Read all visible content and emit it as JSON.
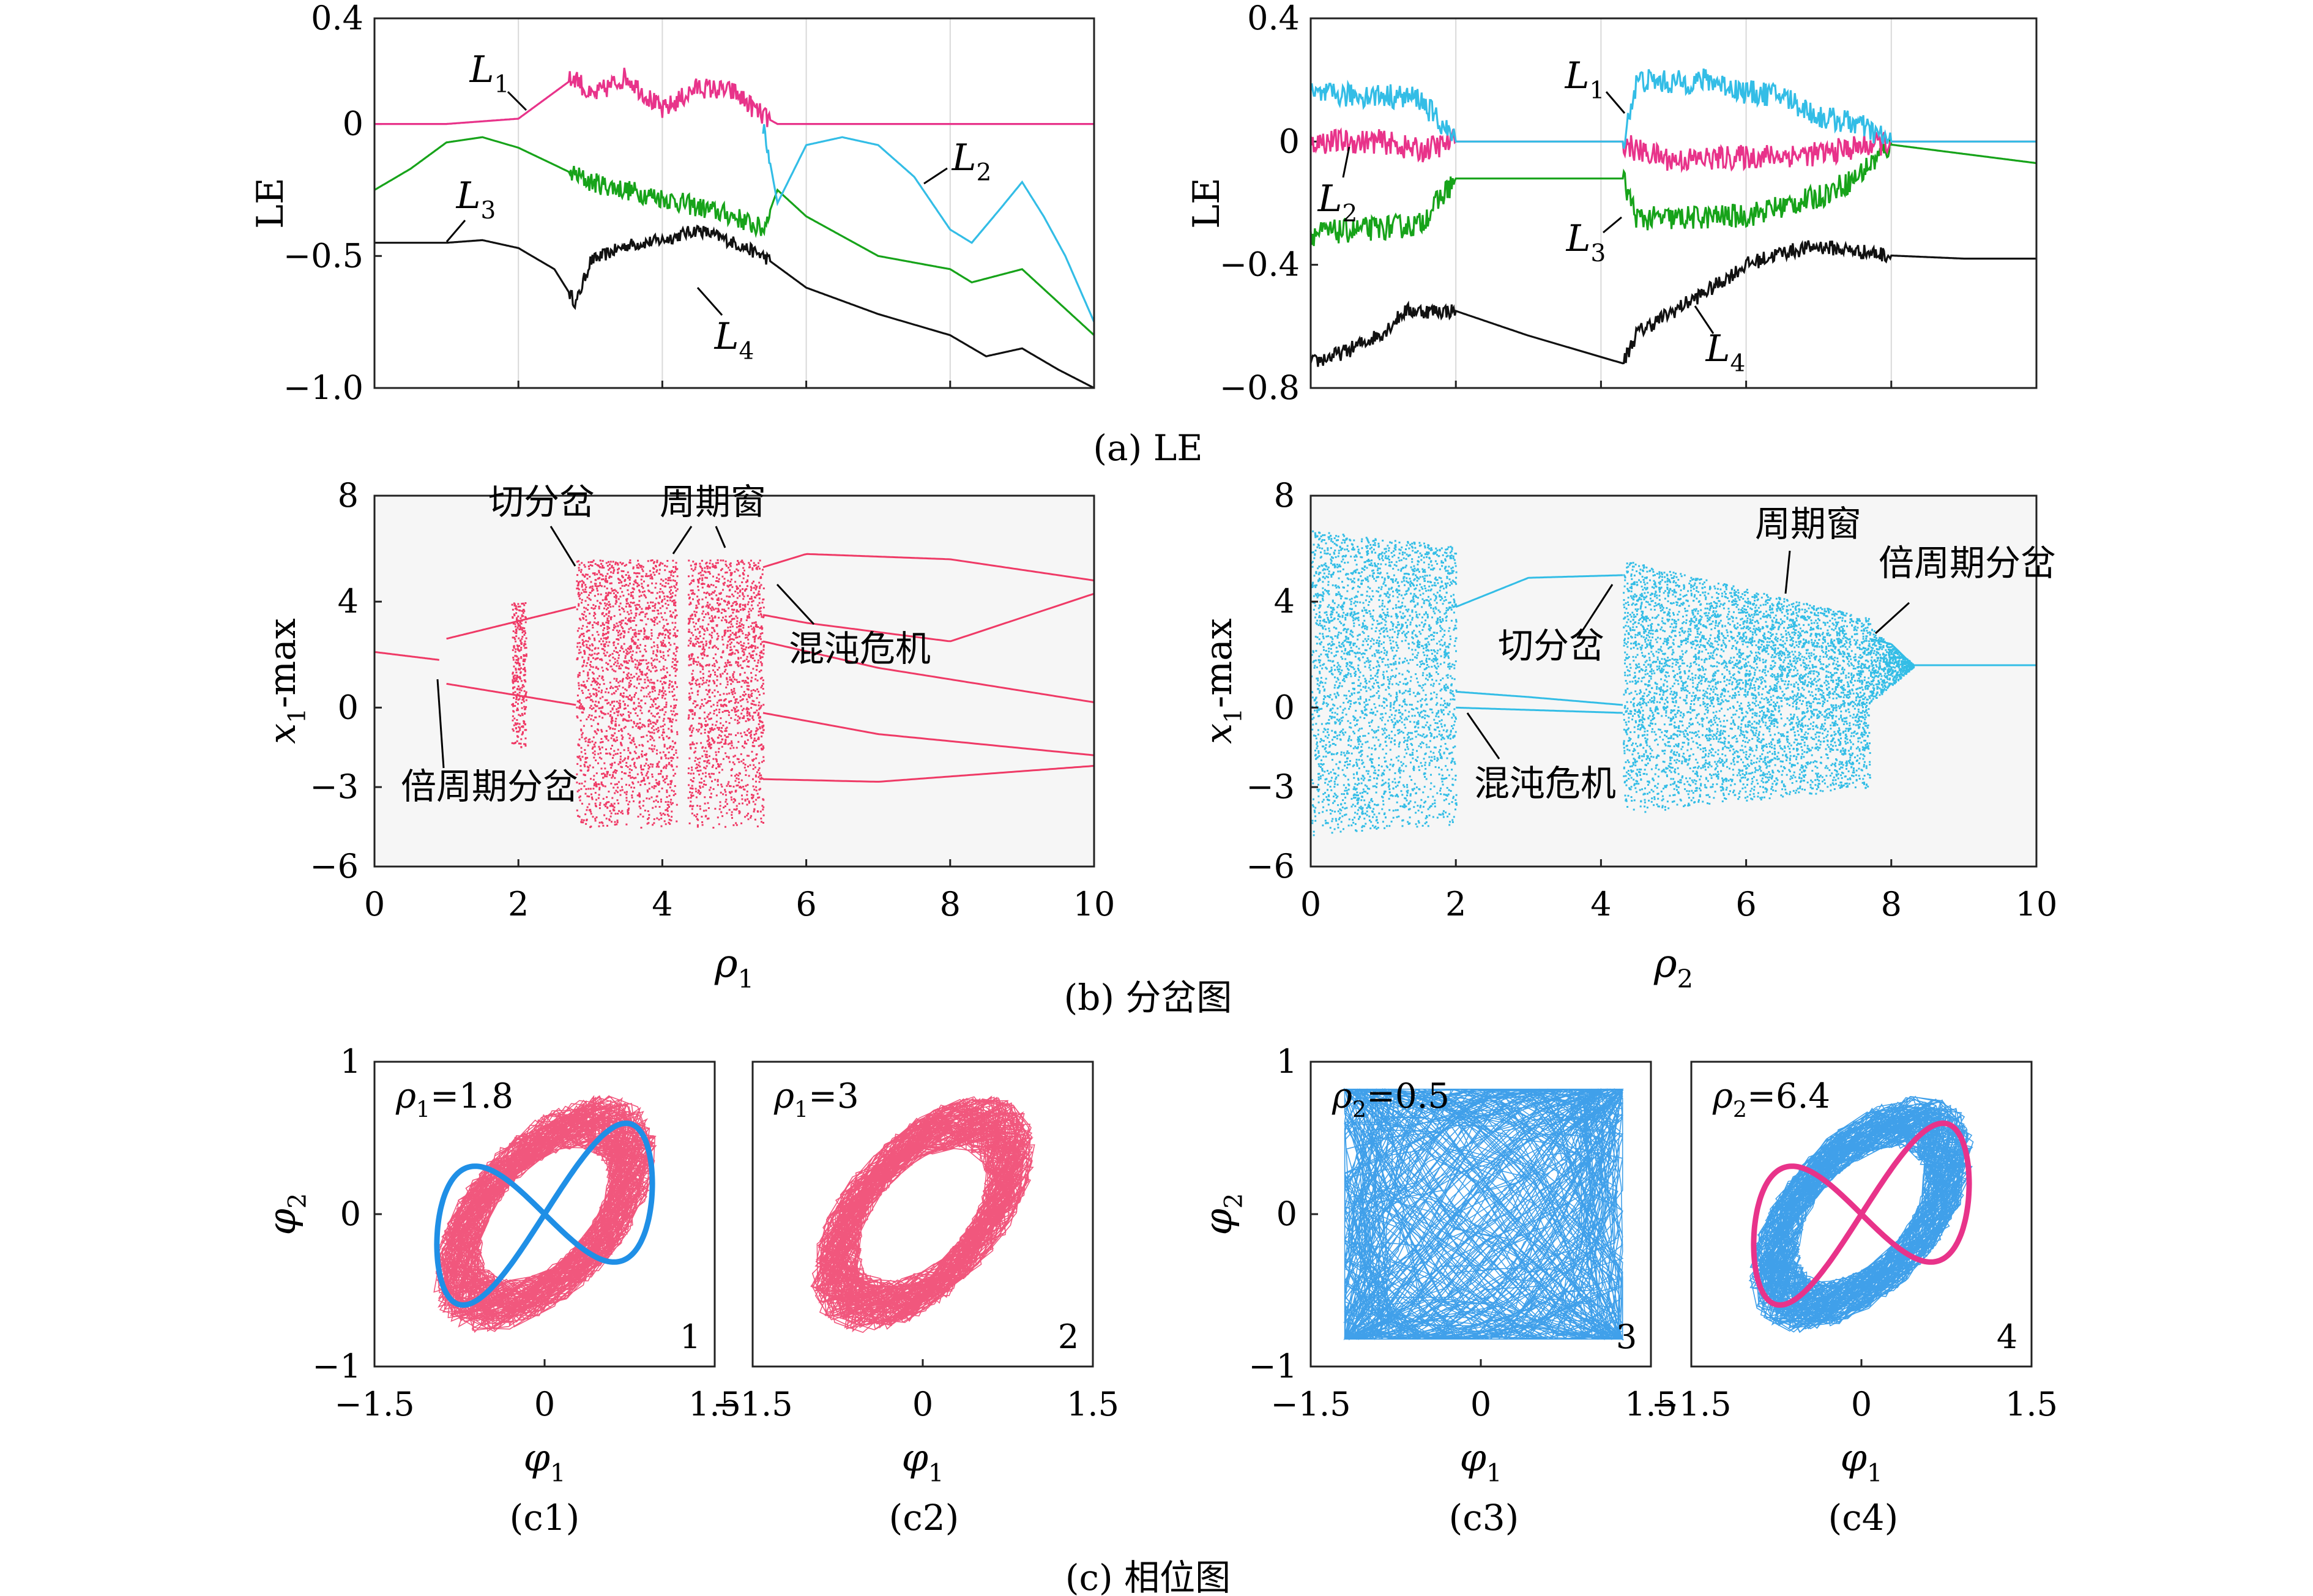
{
  "colors": {
    "pink": "#e8338a",
    "red": "#ef3a66",
    "cyan": "#33bde6",
    "blue": "#1f8fe6",
    "green": "#17a31a",
    "black": "#111111",
    "panel_bg": "#f6f6f6"
  },
  "captions": {
    "a": "(a) LE",
    "b": "(b) 分岔图",
    "c": "(c) 相位图",
    "c1": "(c1)",
    "c2": "(c2)",
    "c3": "(c3)",
    "c4": "(c4)"
  },
  "chart_data": [
    {
      "id": "a-left",
      "type": "line",
      "ylabel": "LE",
      "xlim": [
        0,
        10
      ],
      "ylim": [
        -1.0,
        0.4
      ],
      "yticks": [
        "0.4",
        "0",
        "−0.5",
        "−1.0"
      ],
      "ytick_values": [
        0.4,
        0,
        -0.5,
        -1.0
      ],
      "series_labels": [
        "L1",
        "L2",
        "L3",
        "L4"
      ],
      "series": [
        {
          "name": "L1",
          "color": "pink",
          "x": [
            0,
            1,
            2,
            2.8,
            3,
            3.5,
            4,
            4.5,
            5,
            5.4,
            5.6,
            10
          ],
          "y": [
            0,
            0,
            0.02,
            0.18,
            0.1,
            0.18,
            0.05,
            0.14,
            0.12,
            0.03,
            0,
            0
          ]
        },
        {
          "name": "L2",
          "color": "cyan",
          "x": [
            5.4,
            5.6,
            6,
            6.5,
            7,
            7.5,
            8,
            8.3,
            8.7,
            9,
            9.3,
            9.6,
            10
          ],
          "y": [
            0,
            -0.3,
            -0.08,
            -0.05,
            -0.08,
            -0.2,
            -0.4,
            -0.45,
            -0.32,
            -0.22,
            -0.35,
            -0.5,
            -0.75
          ]
        },
        {
          "name": "L3",
          "color": "green",
          "x": [
            0,
            0.5,
            1,
            1.5,
            2,
            3,
            4,
            5,
            5.4,
            5.6,
            6,
            7,
            8,
            8.3,
            9,
            10
          ],
          "y": [
            -0.25,
            -0.17,
            -0.07,
            -0.05,
            -0.09,
            -0.22,
            -0.28,
            -0.35,
            -0.4,
            -0.25,
            -0.35,
            -0.5,
            -0.55,
            -0.6,
            -0.55,
            -0.8
          ]
        },
        {
          "name": "L4",
          "color": "black",
          "x": [
            0,
            1,
            1.5,
            2,
            2.5,
            2.8,
            3,
            3.5,
            4,
            4.5,
            5,
            5.4,
            6,
            7,
            8,
            8.5,
            9,
            9.5,
            10
          ],
          "y": [
            -0.45,
            -0.45,
            -0.44,
            -0.47,
            -0.55,
            -0.68,
            -0.52,
            -0.46,
            -0.44,
            -0.4,
            -0.45,
            -0.5,
            -0.62,
            -0.72,
            -0.8,
            -0.88,
            -0.85,
            -0.93,
            -1.0
          ]
        }
      ]
    },
    {
      "id": "a-right",
      "type": "line",
      "ylabel": "LE",
      "xlim": [
        0,
        10
      ],
      "ylim": [
        -0.8,
        0.4
      ],
      "yticks": [
        "0.4",
        "0",
        "−0.4",
        "−0.8"
      ],
      "ytick_values": [
        0.4,
        0,
        -0.4,
        -0.8
      ],
      "series_labels": [
        "L1",
        "L2",
        "L3",
        "L4"
      ],
      "series": [
        {
          "name": "L1",
          "color": "cyan",
          "x": [
            0,
            1,
            1.5,
            2,
            4.3,
            4.5,
            5,
            5.5,
            6,
            6.5,
            7,
            7.5,
            8,
            10
          ],
          "y": [
            0.15,
            0.15,
            0.14,
            0,
            0,
            0.2,
            0.19,
            0.2,
            0.16,
            0.15,
            0.08,
            0.06,
            0,
            0
          ]
        },
        {
          "name": "L2",
          "color": "pink",
          "x": [
            0,
            1,
            1.5,
            2,
            4.3,
            4.5,
            5,
            6,
            7,
            8,
            10
          ],
          "y": [
            0,
            0,
            -0.03,
            0,
            0,
            -0.03,
            -0.06,
            -0.05,
            -0.04,
            0,
            0
          ]
        },
        {
          "name": "L3",
          "color": "green",
          "x": [
            0,
            1,
            1.5,
            2,
            4.3,
            4.5,
            5,
            6,
            7,
            7.5,
            8,
            10
          ],
          "y": [
            -0.3,
            -0.28,
            -0.27,
            -0.12,
            -0.12,
            -0.25,
            -0.25,
            -0.24,
            -0.18,
            -0.12,
            -0.01,
            -0.07
          ]
        },
        {
          "name": "L4",
          "color": "black",
          "x": [
            0,
            0.5,
            1,
            1.3,
            2,
            3,
            4.3,
            4.5,
            5,
            5.5,
            6,
            6.5,
            7,
            8,
            9,
            10
          ],
          "y": [
            -0.72,
            -0.68,
            -0.62,
            -0.55,
            -0.55,
            -0.63,
            -0.72,
            -0.62,
            -0.55,
            -0.48,
            -0.4,
            -0.36,
            -0.34,
            -0.37,
            -0.38,
            -0.38
          ]
        }
      ]
    },
    {
      "id": "b-left",
      "type": "scatter",
      "xlabel": "ρ1",
      "ylabel": "x1-max",
      "xlim": [
        0,
        10
      ],
      "ylim": [
        -6,
        8
      ],
      "xticks": [
        "0",
        "2",
        "4",
        "6",
        "8",
        "10"
      ],
      "xtick_values": [
        0,
        2,
        4,
        6,
        8,
        10
      ],
      "yticks": [
        "8",
        "4",
        "0",
        "−3",
        "−6"
      ],
      "ytick_values": [
        8,
        4,
        0,
        -3,
        -6
      ],
      "color": "red",
      "chaos_bands": [
        [
          1.9,
          2.1
        ],
        [
          2.8,
          4.2
        ],
        [
          4.35,
          5.4
        ]
      ],
      "chaos_range_y": [
        -4.5,
        5.6
      ],
      "branches": [
        {
          "x": [
            0,
            0.9
          ],
          "y": [
            2.1,
            1.8
          ]
        },
        {
          "x": [
            1.0,
            2.8
          ],
          "y": [
            2.6,
            3.8
          ]
        },
        {
          "x": [
            1.0,
            2.8
          ],
          "y": [
            0.9,
            0.1
          ]
        },
        {
          "x": [
            5.4,
            6,
            8,
            10
          ],
          "y": [
            5.3,
            5.8,
            5.6,
            4.8
          ]
        },
        {
          "x": [
            5.4,
            6,
            8,
            10
          ],
          "y": [
            3.5,
            3.2,
            2.5,
            4.3
          ]
        },
        {
          "x": [
            5.4,
            7,
            10
          ],
          "y": [
            2.5,
            1.5,
            0.2
          ]
        },
        {
          "x": [
            5.4,
            7,
            10
          ],
          "y": [
            -0.2,
            -1.0,
            -1.8
          ]
        },
        {
          "x": [
            5.4,
            7,
            10
          ],
          "y": [
            -2.7,
            -2.8,
            -2.2
          ]
        }
      ],
      "annotations": [
        "切分岔",
        "周期窗",
        "混沌危机",
        "倍周期分岔"
      ]
    },
    {
      "id": "b-right",
      "type": "scatter",
      "xlabel": "ρ2",
      "ylabel": "x1-max",
      "xlim": [
        0,
        10
      ],
      "ylim": [
        -6,
        8
      ],
      "xticks": [
        "0",
        "2",
        "4",
        "6",
        "8",
        "10"
      ],
      "xtick_values": [
        0,
        2,
        4,
        6,
        8,
        10
      ],
      "yticks": [
        "8",
        "4",
        "0",
        "−3",
        "−6"
      ],
      "ytick_values": [
        8,
        4,
        0,
        -3,
        -6
      ],
      "color": "cyan",
      "chaos_bands": [
        [
          0,
          2.0
        ],
        [
          4.3,
          7.7
        ]
      ],
      "chaos_range_y": [
        -5.0,
        7.2
      ],
      "branches": [
        {
          "x": [
            2.0,
            3,
            4.3
          ],
          "y": [
            3.8,
            4.9,
            5.0
          ]
        },
        {
          "x": [
            2.0,
            3,
            4.3
          ],
          "y": [
            0.6,
            0.4,
            0.1
          ]
        },
        {
          "x": [
            2.0,
            4.3
          ],
          "y": [
            0.0,
            -0.2
          ]
        },
        {
          "x": [
            7.7,
            8,
            8.3,
            10
          ],
          "y": [
            2.6,
            2.4,
            1.6,
            1.6
          ]
        }
      ],
      "annotations": [
        "周期窗",
        "倍周期分岔",
        "切分岔",
        "混沌危机"
      ]
    },
    {
      "id": "c1",
      "type": "scatter",
      "label": "ρ1=1.8",
      "panel_number": "1",
      "xlabel": "φ1",
      "ylabel": "φ2",
      "xlim": [
        -1.5,
        1.5
      ],
      "ylim": [
        -1,
        1
      ],
      "xticks": [
        "−1.5",
        "0",
        "1.5"
      ],
      "yticks": [
        "1",
        "0",
        "−1"
      ],
      "fill_color": "red",
      "overlay_color": "blue"
    },
    {
      "id": "c2",
      "type": "scatter",
      "label": "ρ1=3",
      "panel_number": "2",
      "xlabel": "φ1",
      "xlim": [
        -1.5,
        1.5
      ],
      "ylim": [
        -1,
        1
      ],
      "xticks": [
        "−1.5",
        "0",
        "1.5"
      ],
      "fill_color": "red"
    },
    {
      "id": "c3",
      "type": "scatter",
      "label": "ρ2=0.5",
      "panel_number": "3",
      "xlabel": "φ1",
      "ylabel": "φ2",
      "xlim": [
        -1.5,
        1.5
      ],
      "ylim": [
        -1,
        1
      ],
      "xticks": [
        "−1.5",
        "0",
        "1.5"
      ],
      "yticks": [
        "1",
        "0",
        "−1"
      ],
      "fill_color": "blue"
    },
    {
      "id": "c4",
      "type": "scatter",
      "label": "ρ2=6.4",
      "panel_number": "4",
      "xlabel": "φ1",
      "xlim": [
        -1.5,
        1.5
      ],
      "ylim": [
        -1,
        1
      ],
      "xticks": [
        "−1.5",
        "0",
        "1.5"
      ],
      "fill_color": "blue",
      "overlay_color": "pink"
    }
  ]
}
